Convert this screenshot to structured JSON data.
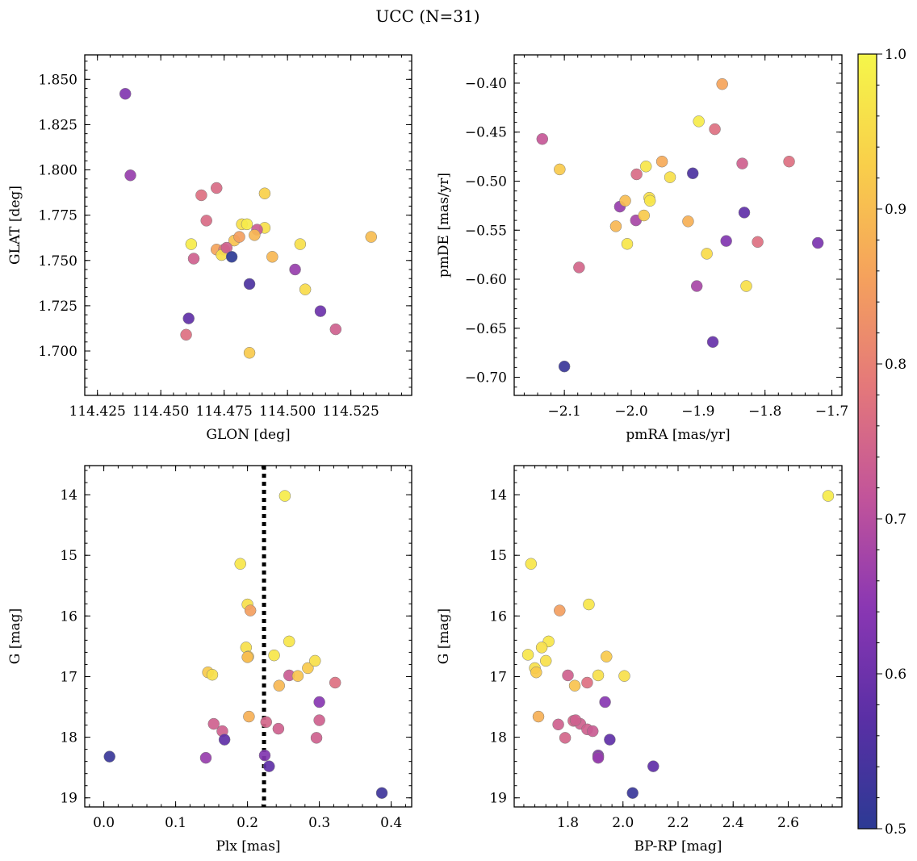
{
  "figure": {
    "title": "UCC (N=31)"
  },
  "colorbar": {
    "min": 0.5,
    "max": 1.0,
    "ticks": [
      0.5,
      0.6,
      0.7,
      0.8,
      0.9,
      1.0
    ],
    "tick_labels": [
      "0.5",
      "0.6",
      "0.7",
      "0.8",
      "0.9",
      "1.0"
    ],
    "colormap": "plasma",
    "stops": [
      "#2c3a94",
      "#5a2fa5",
      "#8a37b3",
      "#c2549a",
      "#e4787a",
      "#f5a25c",
      "#f9cf4a",
      "#f5f64a"
    ]
  },
  "chart_data": [
    {
      "type": "scatter",
      "name": "glon_glat",
      "xlabel": "GLON [deg]",
      "ylabel": "GLAT [deg]",
      "xlim": [
        114.42,
        114.549
      ],
      "ylim": [
        1.6755,
        1.8635
      ],
      "xticks": [
        114.425,
        114.45,
        114.475,
        114.5,
        114.525
      ],
      "xtick_labels": [
        "114.425",
        "114.450",
        "114.475",
        "114.500",
        "114.525"
      ],
      "yticks": [
        1.7,
        1.725,
        1.75,
        1.775,
        1.8,
        1.825,
        1.85
      ],
      "ytick_labels": [
        "1.700",
        "1.725",
        "1.750",
        "1.775",
        "1.800",
        "1.825",
        "1.850"
      ],
      "x": [
        114.436,
        114.438,
        114.466,
        114.472,
        114.468,
        114.491,
        114.462,
        114.482,
        114.484,
        114.491,
        114.479,
        114.488,
        114.487,
        114.463,
        114.494,
        114.472,
        114.475,
        114.481,
        114.474,
        114.476,
        114.478,
        114.505,
        114.533,
        114.503,
        114.485,
        114.507,
        114.513,
        114.519,
        114.485,
        114.461,
        114.46
      ],
      "y": [
        1.842,
        1.797,
        1.786,
        1.79,
        1.772,
        1.787,
        1.759,
        1.77,
        1.77,
        1.768,
        1.761,
        1.767,
        1.764,
        1.751,
        1.752,
        1.756,
        1.756,
        1.763,
        1.753,
        1.757,
        1.752,
        1.759,
        1.763,
        1.745,
        1.737,
        1.734,
        1.722,
        1.712,
        1.699,
        1.718,
        1.709
      ],
      "c": [
        0.63,
        0.66,
        0.77,
        0.76,
        0.76,
        0.93,
        0.98,
        0.96,
        0.98,
        0.96,
        0.91,
        0.73,
        0.89,
        0.74,
        0.89,
        0.86,
        0.8,
        0.85,
        0.96,
        0.74,
        0.5,
        0.96,
        0.9,
        0.66,
        0.55,
        0.95,
        0.6,
        0.74,
        0.92,
        0.58,
        0.77
      ]
    },
    {
      "type": "scatter",
      "name": "pmra_pmde",
      "xlabel": "pmRA [mas/yr]",
      "ylabel": "pmDE [mas/yr]",
      "xlim": [
        -2.175,
        -1.685
      ],
      "ylim": [
        -0.7185,
        -0.3712
      ],
      "xticks": [
        -2.1,
        -2.0,
        -1.9,
        -1.8,
        -1.7
      ],
      "xtick_labels": [
        "−2.1",
        "−2.0",
        "−1.9",
        "−1.8",
        "−1.7"
      ],
      "yticks": [
        -0.7,
        -0.65,
        -0.6,
        -0.55,
        -0.5,
        -0.45,
        -0.4
      ],
      "ytick_labels": [
        "−0.70",
        "−0.65",
        "−0.60",
        "−0.55",
        "−0.50",
        "−0.45",
        "−0.40"
      ],
      "x": [
        -1.864,
        -1.899,
        -1.875,
        -2.133,
        -2.107,
        -1.954,
        -1.978,
        -1.942,
        -1.992,
        -1.908,
        -1.834,
        -1.764,
        -2.017,
        -1.973,
        -1.972,
        -2.009,
        -1.993,
        -2.023,
        -1.981,
        -1.915,
        -1.858,
        -1.811,
        -1.721,
        -1.831,
        -2.006,
        -1.887,
        -2.078,
        -1.902,
        -1.828,
        -1.878,
        -2.1
      ],
      "y": [
        -0.401,
        -0.439,
        -0.447,
        -0.457,
        -0.488,
        -0.48,
        -0.485,
        -0.496,
        -0.493,
        -0.492,
        -0.482,
        -0.48,
        -0.526,
        -0.517,
        -0.52,
        -0.52,
        -0.54,
        -0.546,
        -0.535,
        -0.541,
        -0.561,
        -0.562,
        -0.563,
        -0.532,
        -0.564,
        -0.574,
        -0.588,
        -0.607,
        -0.607,
        -0.664,
        -0.689
      ],
      "c": [
        0.86,
        0.98,
        0.77,
        0.72,
        0.92,
        0.87,
        0.97,
        0.96,
        0.76,
        0.55,
        0.74,
        0.77,
        0.66,
        0.96,
        0.97,
        0.9,
        0.68,
        0.89,
        0.92,
        0.88,
        0.63,
        0.77,
        0.62,
        0.58,
        0.97,
        0.95,
        0.75,
        0.68,
        0.96,
        0.59,
        0.52
      ]
    },
    {
      "type": "scatter",
      "name": "plx_g",
      "xlabel": "Plx [mas]",
      "ylabel": "G [mag]",
      "xlim": [
        -0.0265,
        0.4285
      ],
      "ylim": [
        19.15,
        13.52
      ],
      "yinverted": true,
      "vline": {
        "x": 0.223,
        "style": "dotted",
        "color": "#000000"
      },
      "xticks": [
        0.0,
        0.1,
        0.2,
        0.3,
        0.4
      ],
      "xtick_labels": [
        "0.0",
        "0.1",
        "0.2",
        "0.3",
        "0.4"
      ],
      "yticks": [
        14,
        15,
        16,
        17,
        18,
        19
      ],
      "ytick_labels": [
        "14",
        "15",
        "16",
        "17",
        "18",
        "19"
      ],
      "x": [
        0.252,
        0.19,
        0.2,
        0.204,
        0.198,
        0.258,
        0.201,
        0.237,
        0.145,
        0.151,
        0.258,
        0.244,
        0.27,
        0.284,
        0.294,
        0.322,
        0.3,
        0.3,
        0.153,
        0.165,
        0.168,
        0.202,
        0.226,
        0.243,
        0.296,
        0.142,
        0.008,
        0.224,
        0.23,
        0.387,
        0.2
      ],
      "y": [
        14.02,
        15.14,
        15.81,
        15.91,
        16.52,
        16.42,
        16.67,
        16.65,
        16.93,
        16.97,
        16.98,
        17.15,
        16.99,
        16.86,
        16.74,
        17.1,
        17.42,
        17.72,
        17.78,
        17.9,
        18.04,
        17.66,
        17.75,
        17.86,
        18.01,
        18.34,
        18.32,
        18.3,
        18.48,
        18.92,
        16.68
      ],
      "c": [
        0.98,
        0.97,
        0.96,
        0.85,
        0.96,
        0.97,
        0.92,
        0.97,
        0.92,
        0.96,
        0.73,
        0.89,
        0.91,
        0.92,
        0.96,
        0.77,
        0.64,
        0.74,
        0.74,
        0.74,
        0.58,
        0.88,
        0.75,
        0.74,
        0.74,
        0.66,
        0.52,
        0.63,
        0.58,
        0.53,
        0.9
      ]
    },
    {
      "type": "scatter",
      "name": "bprp_g",
      "xlabel": "BP-RP [mag]",
      "ylabel": "G [mag]",
      "xlim": [
        1.605,
        2.795
      ],
      "ylim": [
        19.15,
        13.52
      ],
      "yinverted": true,
      "xticks": [
        1.8,
        2.0,
        2.2,
        2.4,
        2.6
      ],
      "xtick_labels": [
        "1.8",
        "2.0",
        "2.2",
        "2.4",
        "2.6"
      ],
      "yticks": [
        14,
        15,
        16,
        17,
        18,
        19
      ],
      "ytick_labels": [
        "14",
        "15",
        "16",
        "17",
        "18",
        "19"
      ],
      "x": [
        2.745,
        1.666,
        1.876,
        1.77,
        1.73,
        1.705,
        1.72,
        1.655,
        1.68,
        1.685,
        1.8,
        1.825,
        1.87,
        1.91,
        1.94,
        2.005,
        1.935,
        1.765,
        1.82,
        1.845,
        1.87,
        1.89,
        1.91,
        1.693,
        1.79,
        1.952,
        1.91,
        1.91,
        2.11,
        2.035,
        1.828
      ],
      "y": [
        14.02,
        15.14,
        15.81,
        15.91,
        16.42,
        16.52,
        16.74,
        16.64,
        16.86,
        16.93,
        16.98,
        17.15,
        17.1,
        16.98,
        16.67,
        16.99,
        17.42,
        17.79,
        17.73,
        17.78,
        17.87,
        17.9,
        18.3,
        17.66,
        18.01,
        18.04,
        18.32,
        18.34,
        18.48,
        18.92,
        17.72
      ],
      "c": [
        0.98,
        0.97,
        0.97,
        0.85,
        0.97,
        0.96,
        0.96,
        0.97,
        0.96,
        0.92,
        0.74,
        0.91,
        0.77,
        0.96,
        0.92,
        0.96,
        0.64,
        0.74,
        0.75,
        0.74,
        0.74,
        0.73,
        0.64,
        0.88,
        0.75,
        0.58,
        0.63,
        0.66,
        0.58,
        0.52,
        0.74
      ]
    }
  ]
}
